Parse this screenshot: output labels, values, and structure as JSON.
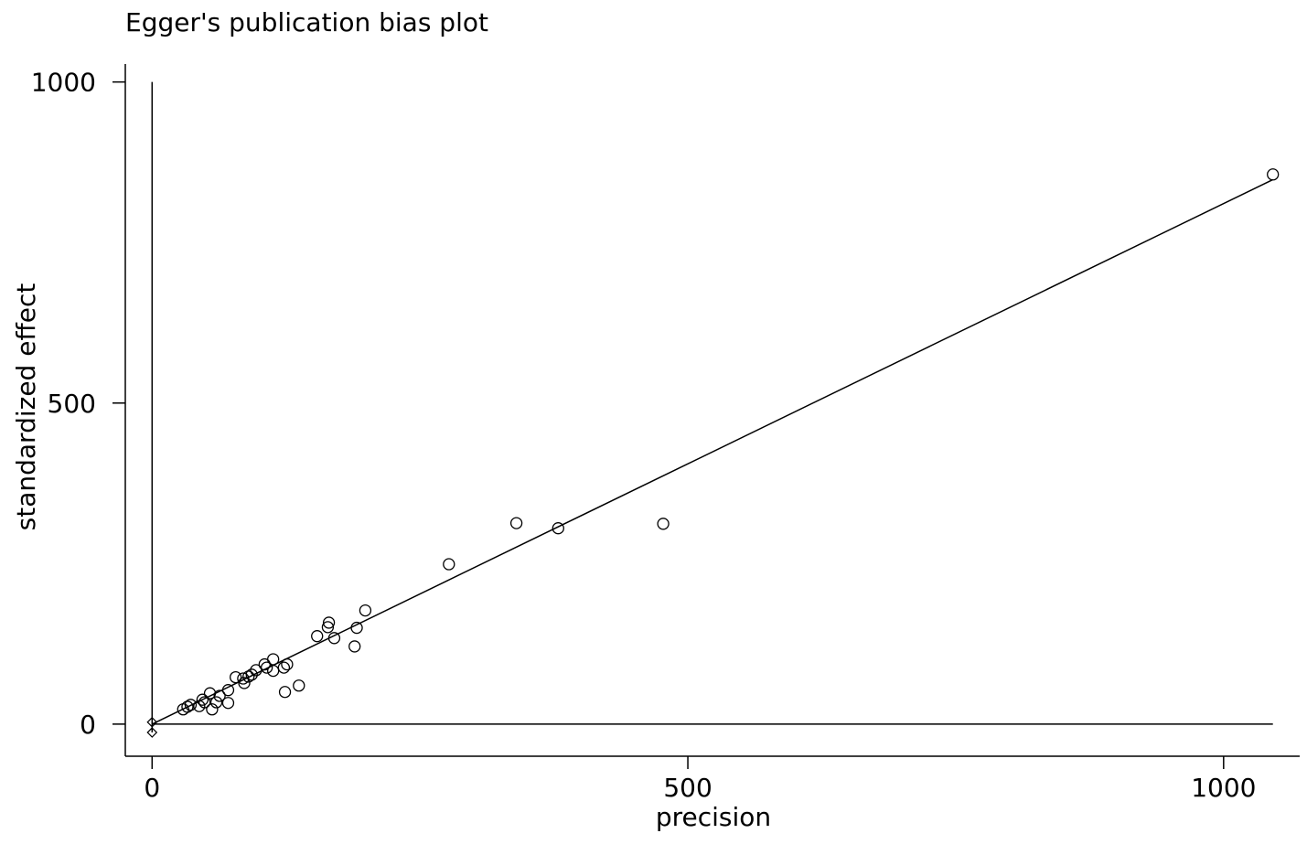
{
  "chart_data": {
    "type": "scatter",
    "title": "Egger's publication bias plot",
    "x_label": "precision",
    "y_label": "standardized effect",
    "x": [
      1046,
      477,
      379,
      340,
      277,
      199,
      191,
      189,
      170,
      165,
      164,
      154,
      137,
      126,
      124,
      123,
      113,
      113,
      107,
      105,
      97,
      93,
      90,
      85,
      86,
      78,
      71,
      71,
      63,
      60,
      56,
      54,
      49,
      47,
      44,
      36,
      33,
      29
    ],
    "values": [
      856,
      312,
      305,
      313,
      249,
      177,
      150,
      121,
      134,
      158,
      151,
      137,
      60,
      93,
      50,
      88,
      101,
      83,
      88,
      93,
      84,
      77,
      74,
      71,
      64,
      73,
      53,
      33,
      44,
      34,
      23,
      48,
      34,
      38,
      28,
      30,
      27,
      23
    ],
    "color": "#000000",
    "fit": {
      "x": [
        0,
        1046
      ],
      "values": [
        0,
        848
      ]
    },
    "intercept": {
      "x": [
        0,
        0
      ],
      "values": [
        3,
        -13
      ]
    },
    "xlim": [
      -25,
      1071
    ],
    "ylim": [
      -50,
      1028
    ],
    "xticks": [
      0,
      500,
      1000
    ],
    "yticks": [
      0,
      500,
      1000
    ]
  }
}
